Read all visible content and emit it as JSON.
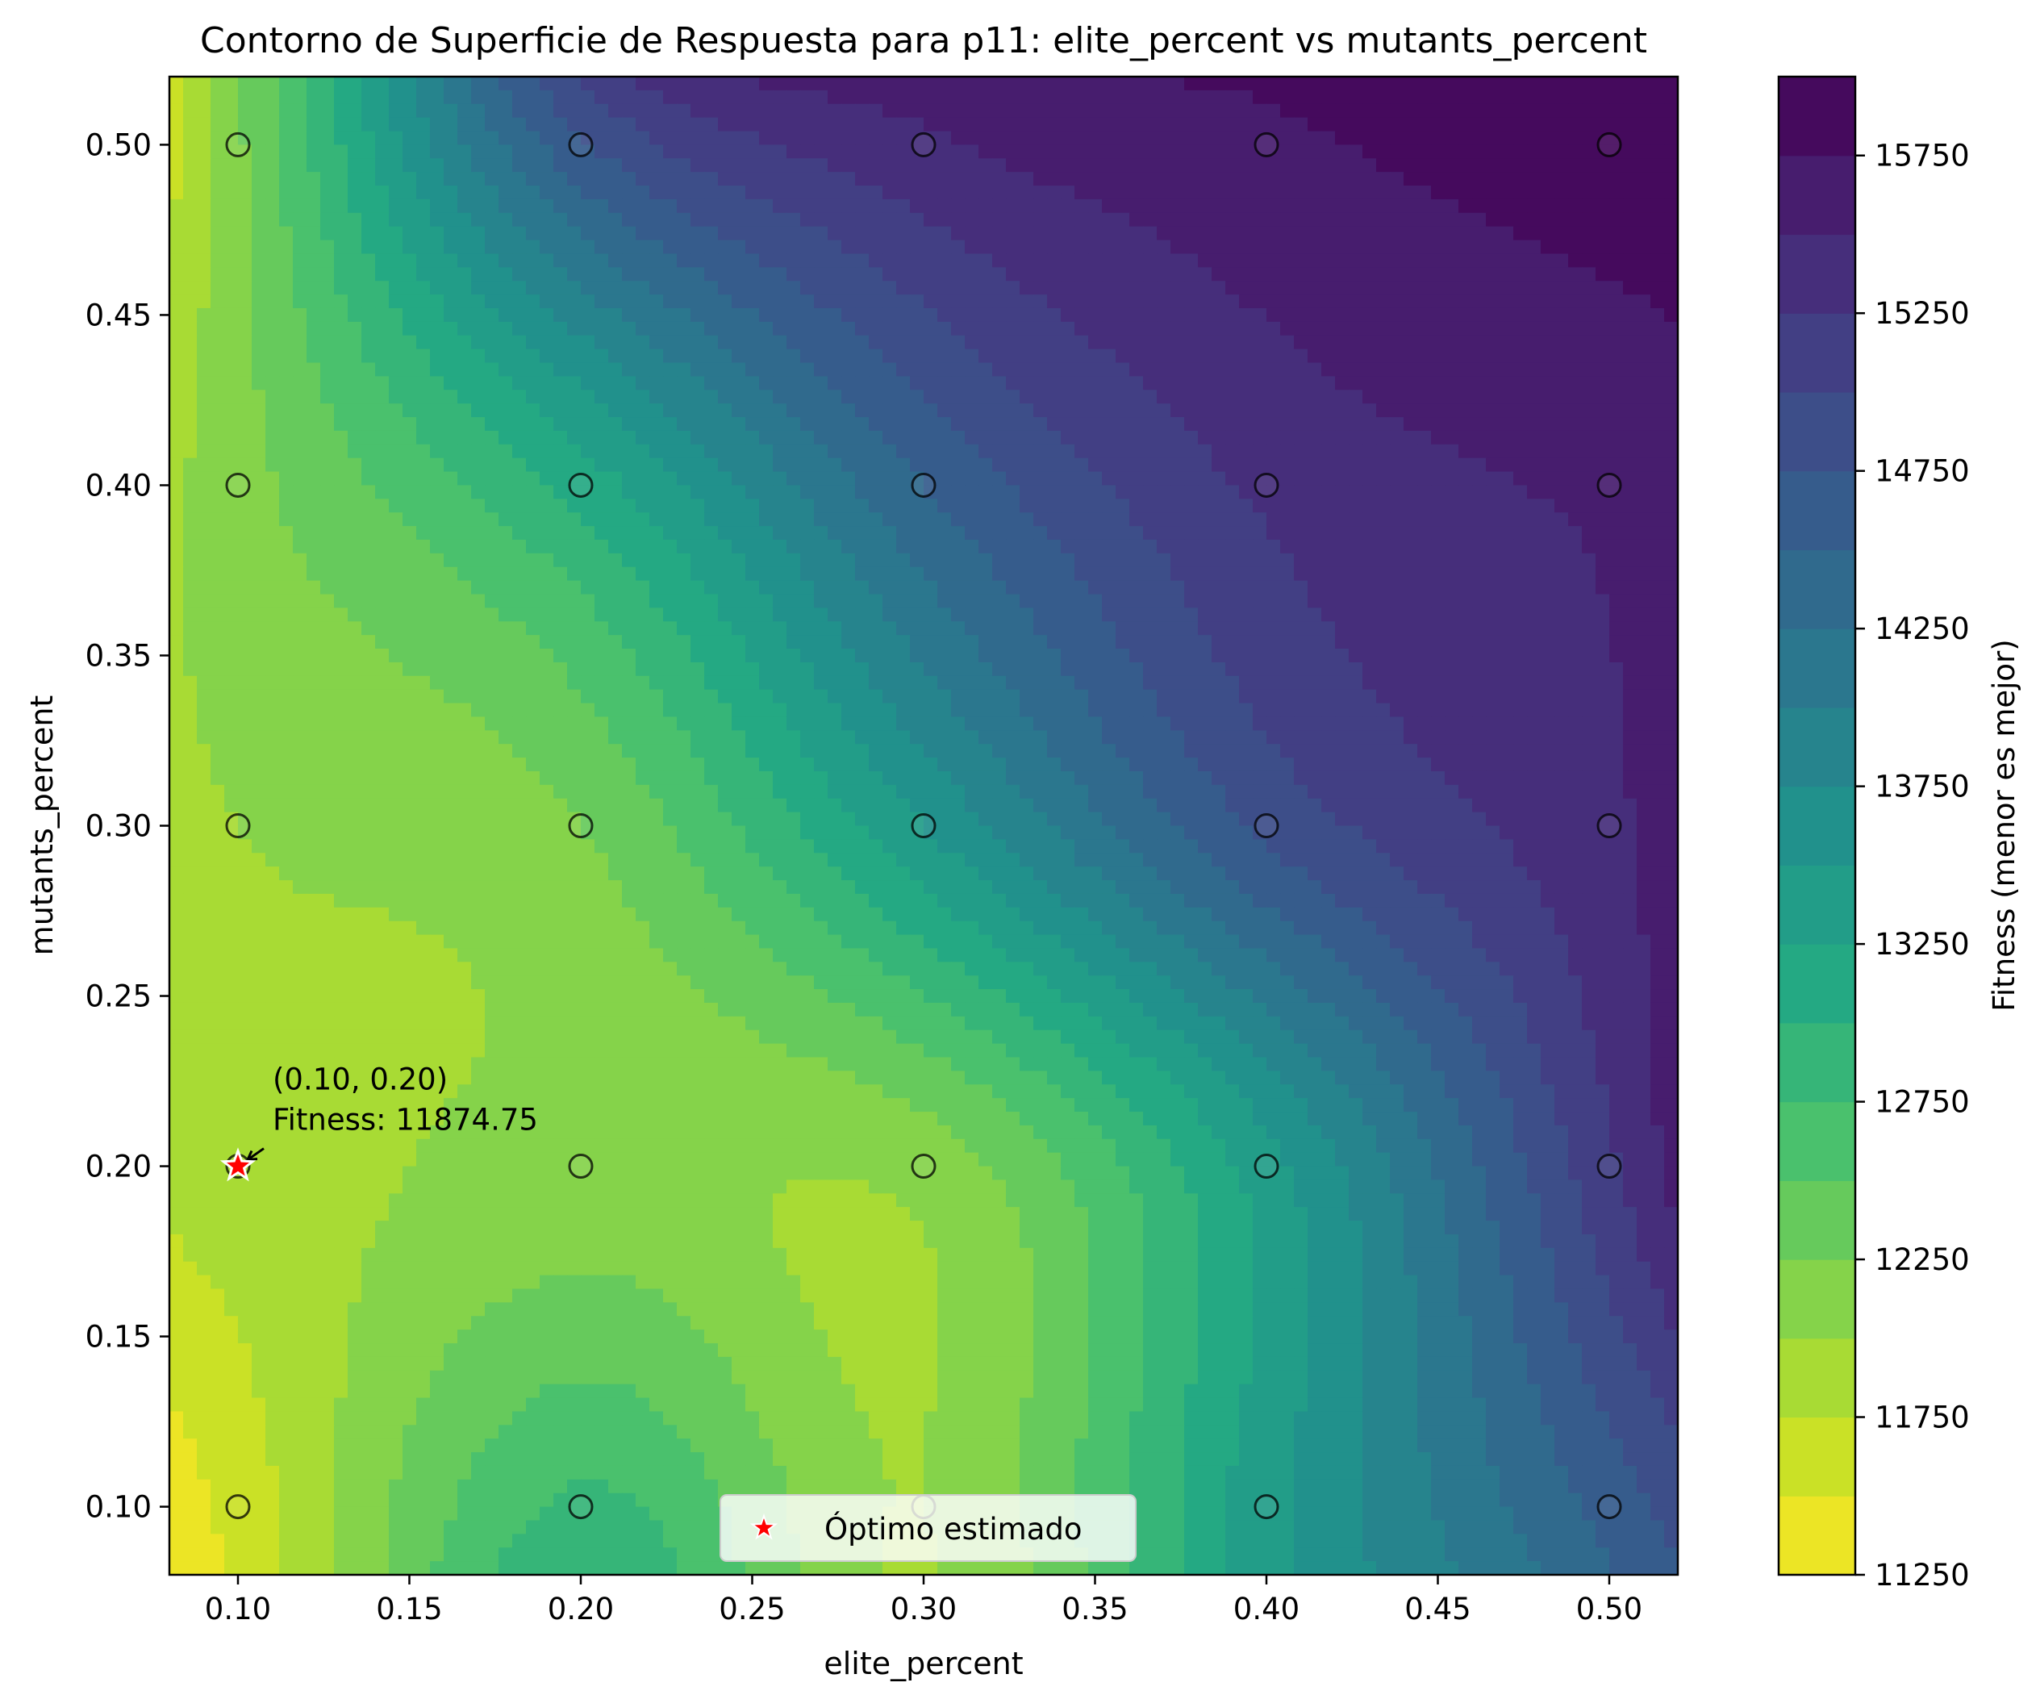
{
  "chart_data": {
    "type": "heatmap",
    "subtype": "filled-contour",
    "title": "Contorno de Superficie de Respuesta para p11: elite_percent vs mutants_percent",
    "xlabel": "elite_percent",
    "ylabel": "mutants_percent",
    "xlim": [
      0.08,
      0.52
    ],
    "ylim": [
      0.08,
      0.52
    ],
    "xticks": [
      "0.10",
      "0.15",
      "0.20",
      "0.25",
      "0.30",
      "0.35",
      "0.40",
      "0.45",
      "0.50"
    ],
    "yticks": [
      "0.10",
      "0.15",
      "0.20",
      "0.25",
      "0.30",
      "0.35",
      "0.40",
      "0.45",
      "0.50"
    ],
    "grid": false,
    "colormap": "viridis_r",
    "colorbar": {
      "label": "Fitness (menor es mejor)",
      "min": 11250,
      "max": 16000,
      "level_step": 250,
      "ticks": [
        "11250",
        "11750",
        "12250",
        "12750",
        "13250",
        "13750",
        "14250",
        "14750",
        "15250",
        "15750"
      ]
    },
    "x": [
      0.1,
      0.2,
      0.3,
      0.4,
      0.5
    ],
    "y": [
      0.1,
      0.2,
      0.3,
      0.4,
      0.5
    ],
    "z": [
      [
        11600,
        12800,
        12000,
        13400,
        14600
      ],
      [
        11874.75,
        12100,
        12100,
        13400,
        15200
      ],
      [
        12000,
        12250,
        13500,
        14800,
        15450
      ],
      [
        12150,
        13100,
        14500,
        15300,
        15550
      ],
      [
        12200,
        14700,
        15450,
        15700,
        15900
      ]
    ],
    "sample_points": [
      {
        "x": 0.1,
        "y": 0.1
      },
      {
        "x": 0.2,
        "y": 0.1
      },
      {
        "x": 0.3,
        "y": 0.1
      },
      {
        "x": 0.4,
        "y": 0.1
      },
      {
        "x": 0.5,
        "y": 0.1
      },
      {
        "x": 0.1,
        "y": 0.2
      },
      {
        "x": 0.2,
        "y": 0.2
      },
      {
        "x": 0.3,
        "y": 0.2
      },
      {
        "x": 0.4,
        "y": 0.2
      },
      {
        "x": 0.5,
        "y": 0.2
      },
      {
        "x": 0.1,
        "y": 0.3
      },
      {
        "x": 0.2,
        "y": 0.3
      },
      {
        "x": 0.3,
        "y": 0.3
      },
      {
        "x": 0.4,
        "y": 0.3
      },
      {
        "x": 0.5,
        "y": 0.3
      },
      {
        "x": 0.1,
        "y": 0.4
      },
      {
        "x": 0.2,
        "y": 0.4
      },
      {
        "x": 0.3,
        "y": 0.4
      },
      {
        "x": 0.4,
        "y": 0.4
      },
      {
        "x": 0.5,
        "y": 0.4
      },
      {
        "x": 0.1,
        "y": 0.5
      },
      {
        "x": 0.2,
        "y": 0.5
      },
      {
        "x": 0.3,
        "y": 0.5
      },
      {
        "x": 0.4,
        "y": 0.5
      },
      {
        "x": 0.5,
        "y": 0.5
      }
    ],
    "optimum": {
      "x": 0.1,
      "y": 0.2,
      "fitness": 11874.75,
      "label_line1": "(0.10, 0.20)",
      "label_line2": "Fitness: 11874.75",
      "marker_color": "#ff0000"
    },
    "legend": {
      "placement": "bottom-center",
      "entries": [
        "Óptimo estimado"
      ]
    }
  }
}
